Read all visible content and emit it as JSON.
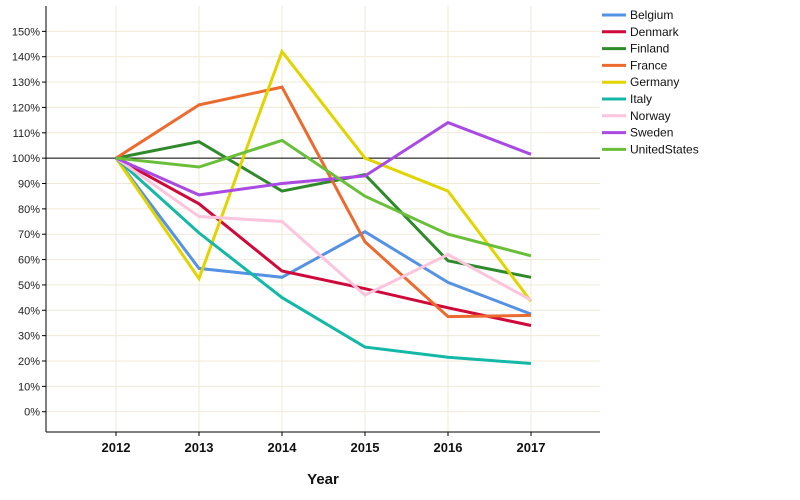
{
  "chart_data": {
    "type": "line",
    "title": "",
    "xlabel": "Year",
    "ylabel": "",
    "x": [
      "2012",
      "2013",
      "2014",
      "2015",
      "2016",
      "2017"
    ],
    "ylim": [
      -8,
      160
    ],
    "y_ticks": [
      0,
      10,
      20,
      30,
      40,
      50,
      60,
      70,
      80,
      90,
      100,
      110,
      120,
      130,
      140,
      150
    ],
    "y_tick_labels": [
      "0%",
      "10%",
      "20%",
      "30%",
      "40%",
      "50%",
      "60%",
      "70%",
      "80%",
      "90%",
      "100%",
      "110%",
      "120%",
      "130%",
      "140%",
      "150%"
    ],
    "reference_line": 100,
    "grid": true,
    "legend_position": "top-right",
    "series": [
      {
        "name": "Belgium",
        "color": "#5592e4",
        "values": [
          100,
          56.5,
          53,
          71,
          51,
          38.5
        ]
      },
      {
        "name": "Denmark",
        "color": "#d0093b",
        "values": [
          100,
          82,
          55.5,
          48.5,
          41,
          34
        ]
      },
      {
        "name": "Finland",
        "color": "#2f8a2b",
        "values": [
          100,
          106.5,
          87,
          93.5,
          59.5,
          53
        ]
      },
      {
        "name": "France",
        "color": "#ec6a2e",
        "values": [
          100,
          121,
          128,
          67,
          37.5,
          38
        ]
      },
      {
        "name": "Germany",
        "color": "#e2d400",
        "values": [
          100,
          52.5,
          142,
          100,
          87,
          43.5
        ]
      },
      {
        "name": "Italy",
        "color": "#14b8a6",
        "values": [
          100,
          70.5,
          45,
          25.5,
          21.5,
          19
        ]
      },
      {
        "name": "Norway",
        "color": "#fcc4dd",
        "values": [
          100,
          77,
          75,
          46,
          62,
          44
        ]
      },
      {
        "name": "Sweden",
        "color": "#a94ae3",
        "values": [
          100,
          85.5,
          90,
          93,
          114,
          101.5
        ]
      },
      {
        "name": "UnitedStates",
        "color": "#6abf3a",
        "values": [
          100,
          96.5,
          107,
          85,
          70,
          61.5
        ]
      }
    ]
  }
}
